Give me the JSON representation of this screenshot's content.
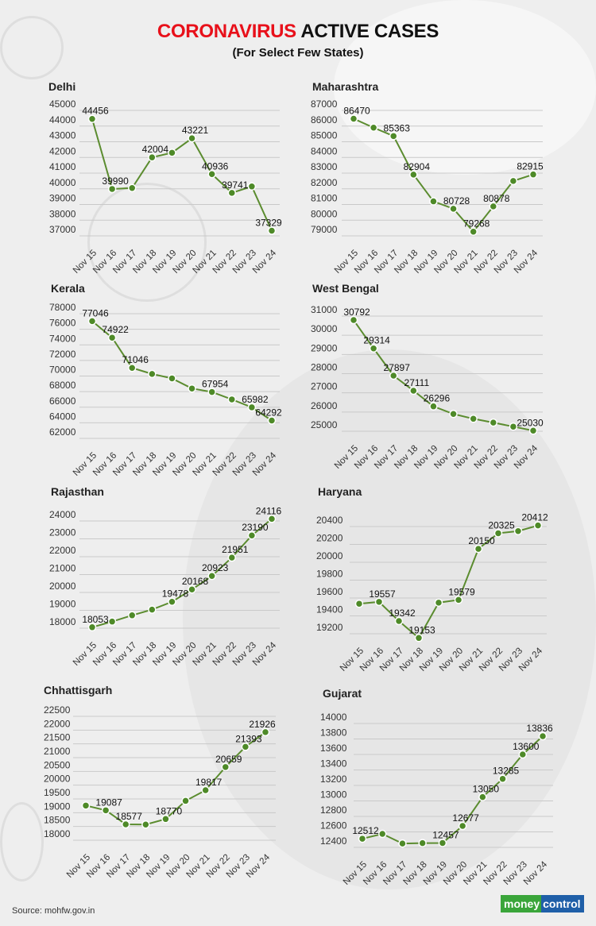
{
  "header": {
    "title_red": "CORONAVIRUS",
    "title_black": "ACTIVE CASES",
    "subtitle": "(For Select Few States)"
  },
  "footer": {
    "source": "Source: mohfw.gov.in",
    "logo_text": "moneycontrol"
  },
  "colors": {
    "line": "#5b8c2f",
    "marker": "#4e8a28",
    "title_accent": "#e8101a"
  },
  "chart_data": [
    {
      "type": "line",
      "title": "Delhi",
      "categories": [
        "Nov 15",
        "Nov 16",
        "Nov 17",
        "Nov 18",
        "Nov 19",
        "Nov 20",
        "Nov 21",
        "Nov 22",
        "Nov 23",
        "Nov 24"
      ],
      "values": [
        44456,
        39990,
        40050,
        42004,
        42300,
        43221,
        40936,
        39741,
        40150,
        37329
      ],
      "data_labels": [
        "44456",
        "39990",
        null,
        "42004",
        null,
        "43221",
        "40936",
        "39741",
        null,
        "37329"
      ],
      "yticks": [
        45000,
        44000,
        43000,
        42000,
        41000,
        40000,
        39000,
        38000,
        37000
      ],
      "ylim": [
        37000,
        45000
      ],
      "grid": true
    },
    {
      "type": "line",
      "title": "Maharashtra",
      "categories": [
        "Nov 15",
        "Nov 16",
        "Nov 17",
        "Nov 18",
        "Nov 19",
        "Nov 20",
        "Nov 21",
        "Nov 22",
        "Nov 23",
        "Nov 24"
      ],
      "values": [
        86470,
        85900,
        85363,
        82904,
        81200,
        80728,
        79268,
        80878,
        82500,
        82915
      ],
      "data_labels": [
        "86470",
        null,
        "85363",
        "82904",
        null,
        "80728",
        "79268",
        "80878",
        null,
        "82915"
      ],
      "yticks": [
        87000,
        86000,
        85000,
        84000,
        83000,
        82000,
        81000,
        80000,
        79000
      ],
      "ylim": [
        79000,
        87000
      ],
      "grid": true
    },
    {
      "type": "line",
      "title": "Kerala",
      "categories": [
        "Nov 15",
        "Nov 16",
        "Nov 17",
        "Nov 18",
        "Nov 19",
        "Nov 20",
        "Nov 21",
        "Nov 22",
        "Nov 23",
        "Nov 24"
      ],
      "values": [
        77046,
        74922,
        71046,
        70270,
        69700,
        68400,
        67954,
        67000,
        65982,
        64292
      ],
      "data_labels": [
        "77046",
        "74922",
        "71046",
        null,
        null,
        null,
        "67954",
        null,
        "65982",
        "64292"
      ],
      "yticks": [
        78000,
        76000,
        74000,
        72000,
        70000,
        68000,
        66000,
        64000,
        62000
      ],
      "ylim": [
        62000,
        78000
      ],
      "grid": true
    },
    {
      "type": "line",
      "title": "West Bengal",
      "categories": [
        "Nov 15",
        "Nov 16",
        "Nov 17",
        "Nov 18",
        "Nov 19",
        "Nov 20",
        "Nov 21",
        "Nov 22",
        "Nov 23",
        "Nov 24"
      ],
      "values": [
        30792,
        29314,
        27897,
        27111,
        26296,
        25900,
        25650,
        25450,
        25240,
        25030
      ],
      "data_labels": [
        "30792",
        "29314",
        "27897",
        "27111",
        "26296",
        null,
        null,
        null,
        null,
        "25030"
      ],
      "yticks": [
        31000,
        30000,
        29000,
        28000,
        27000,
        26000,
        25000
      ],
      "ylim": [
        25000,
        31000
      ],
      "grid": true
    },
    {
      "type": "line",
      "title": "Rajasthan",
      "categories": [
        "Nov 15",
        "Nov 16",
        "Nov 17",
        "Nov 18",
        "Nov 19",
        "Nov 20",
        "Nov 21",
        "Nov 22",
        "Nov 23",
        "Nov 24"
      ],
      "values": [
        18053,
        18370,
        18720,
        19040,
        19478,
        20168,
        20923,
        21951,
        23190,
        24116
      ],
      "data_labels": [
        "18053",
        null,
        null,
        null,
        "19478",
        "20168",
        "20923",
        "21951",
        "23190",
        "24116"
      ],
      "yticks": [
        24000,
        23000,
        22000,
        21000,
        20000,
        19000,
        18000
      ],
      "ylim": [
        18000,
        24000
      ],
      "grid": true
    },
    {
      "type": "line",
      "title": "Haryana",
      "categories": [
        "Nov 15",
        "Nov 16",
        "Nov 17",
        "Nov 18",
        "Nov 19",
        "Nov 20",
        "Nov 21",
        "Nov 22",
        "Nov 23",
        "Nov 24"
      ],
      "values": [
        19536,
        19557,
        19342,
        19153,
        19548,
        19579,
        20150,
        20325,
        20349,
        20412
      ],
      "data_labels": [
        null,
        "19557",
        "19342",
        "19153",
        null,
        "19579",
        "20150",
        "20325",
        null,
        "20412"
      ],
      "yticks": [
        20400,
        20200,
        20000,
        19800,
        19600,
        19400,
        19200
      ],
      "ylim": [
        19200,
        20400
      ],
      "grid": true
    },
    {
      "type": "line",
      "title": "Chhattisgarh",
      "categories": [
        "Nov 15",
        "Nov 16",
        "Nov 17",
        "Nov 18",
        "Nov 19",
        "Nov 20",
        "Nov 21",
        "Nov 22",
        "Nov 23",
        "Nov 24"
      ],
      "values": [
        19260,
        19087,
        18577,
        18570,
        18770,
        19430,
        19817,
        20659,
        21393,
        21926
      ],
      "data_labels": [
        null,
        "19087",
        "18577",
        null,
        "18770",
        null,
        "19817",
        "20659",
        "21393",
        "21926"
      ],
      "yticks": [
        22500,
        22000,
        21500,
        21000,
        20500,
        20000,
        19500,
        19000,
        18500,
        18000
      ],
      "ylim": [
        18000,
        22500
      ],
      "grid": true
    },
    {
      "type": "line",
      "title": "Gujarat",
      "categories": [
        "Nov 15",
        "Nov 16",
        "Nov 17",
        "Nov 18",
        "Nov 19",
        "Nov 20",
        "Nov 21",
        "Nov 22",
        "Nov 23",
        "Nov 24"
      ],
      "values": [
        12512,
        12574,
        12450,
        12455,
        12457,
        12677,
        13050,
        13285,
        13600,
        13836
      ],
      "data_labels": [
        "12512",
        null,
        null,
        null,
        "12457",
        "12677",
        "13050",
        "13285",
        "13600",
        "13836"
      ],
      "yticks": [
        14000,
        13800,
        13600,
        13400,
        13200,
        13000,
        12800,
        12600,
        12400
      ],
      "ylim": [
        12400,
        14000
      ],
      "grid": true
    }
  ]
}
